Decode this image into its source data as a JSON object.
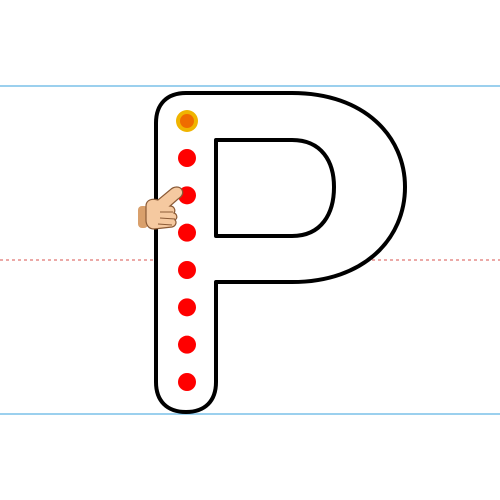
{
  "worksheet": {
    "letter": "P",
    "guide_line_color": "#5fb3e3",
    "midline_color": "#d9534f",
    "letter_outline_color": "#000000",
    "letter_fill_color": "#ffffff"
  },
  "tracing": {
    "start_point": {
      "color": "#f0b400",
      "inner_color": "#ef6c00",
      "status": "start"
    },
    "dots": {
      "color": "#ff0000",
      "count": 7
    },
    "hand_pointer": {
      "icon": "pointing-hand-icon",
      "skin_color": "#f5c9a0",
      "cuff_color": "#d9a06c"
    }
  }
}
